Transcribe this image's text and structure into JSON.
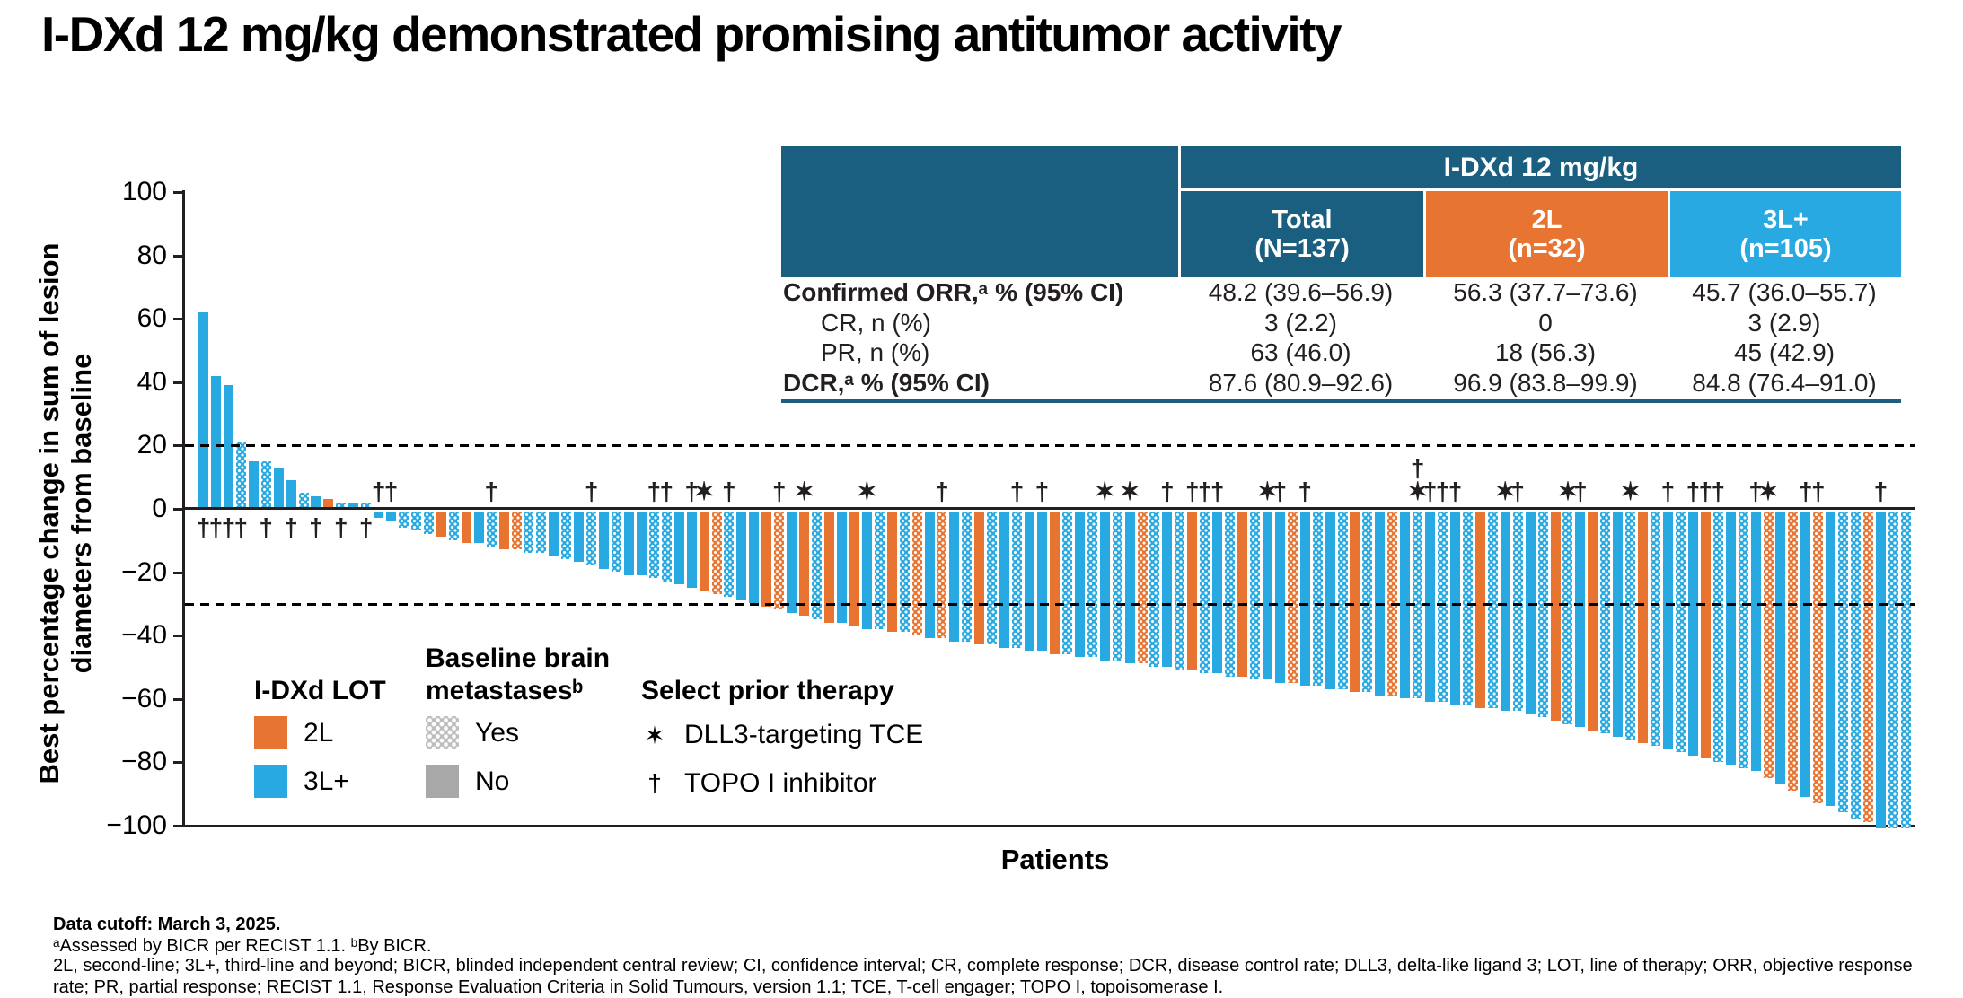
{
  "title": "I-DXd 12 mg/kg demonstrated promising antitumor activity",
  "colors": {
    "teal_header": "#1a5f80",
    "orange_2L": "#e87431",
    "blue_3L": "#29a9e1",
    "gray_no": "#a8a8a8",
    "gray_yes": "#bdbdbd"
  },
  "table": {
    "group_header": "I-DXd 12 mg/kg",
    "col_headers": [
      "Total\n(N=137)",
      "2L\n(n=32)",
      "3L+\n(n=105)"
    ],
    "rows": [
      {
        "label": "Confirmed ORR,ᵃ % (95% CI)",
        "bold": true,
        "indent": false,
        "values": [
          "48.2 (39.6–56.9)",
          "56.3 (37.7–73.6)",
          "45.7 (36.0–55.7)"
        ]
      },
      {
        "label": "CR, n (%)",
        "bold": false,
        "indent": true,
        "values": [
          "3 (2.2)",
          "0",
          "3 (2.9)"
        ]
      },
      {
        "label": "PR, n (%)",
        "bold": false,
        "indent": true,
        "values": [
          "63 (46.0)",
          "18 (56.3)",
          "45 (42.9)"
        ]
      },
      {
        "label": "DCR,ᵃ % (95% CI)",
        "bold": true,
        "indent": false,
        "values": [
          "87.6 (80.9–92.6)",
          "96.9 (83.8–99.9)",
          "84.8 (76.4–91.0)"
        ]
      }
    ]
  },
  "legend": {
    "lot": {
      "title": "I-DXd LOT",
      "items": [
        {
          "label": "2L",
          "color": "#e87431"
        },
        {
          "label": "3L+",
          "color": "#29a9e1"
        }
      ]
    },
    "brain": {
      "title": "Baseline brain\nmetastasesᵇ",
      "items": [
        {
          "label": "Yes",
          "pattern": "hatched"
        },
        {
          "label": "No",
          "pattern": "solid"
        }
      ]
    },
    "therapy": {
      "title": "Select prior therapy",
      "items": [
        {
          "symbol": "✶",
          "label": "DLL3-targeting TCE"
        },
        {
          "symbol": "†",
          "label": "TOPO I inhibitor"
        }
      ]
    }
  },
  "footnotes": [
    "Data cutoff: March 3, 2025.",
    "ᵃAssessed by BICR per RECIST 1.1. ᵇBy BICR.",
    "2L, second-line; 3L+, third-line and beyond; BICR, blinded independent central review; CI, confidence interval; CR, complete response; DCR, disease control rate; DLL3, delta-like ligand 3; LOT, line of therapy; ORR, objective response rate; PR, partial response; RECIST 1.1, Response Evaluation Criteria in Solid Tumours, version 1.1; TCE, T-cell engager; TOPO I, topoisomerase I."
  ],
  "chart_data": {
    "type": "bar",
    "subtype": "waterfall",
    "title": "",
    "xlabel": "Patients",
    "ylabel": "Best percentage change in sum of lesion\ndiameters from baseline",
    "ylim": [
      -100,
      100
    ],
    "yticks": [
      {
        "v": 100,
        "label": "100"
      },
      {
        "v": 80,
        "label": "80"
      },
      {
        "v": 60,
        "label": "60"
      },
      {
        "v": 40,
        "label": "40"
      },
      {
        "v": 20,
        "label": "20"
      },
      {
        "v": 0,
        "label": "0"
      },
      {
        "v": -20,
        "label": "−20"
      },
      {
        "v": -40,
        "label": "−40"
      },
      {
        "v": -60,
        "label": "−60"
      },
      {
        "v": -80,
        "label": "−80"
      },
      {
        "v": -100,
        "label": "−100"
      }
    ],
    "reference_lines": [
      20,
      -30
    ],
    "grid": false,
    "legend_position": "bottom-left",
    "series_colors": {
      "2L": "#e87431",
      "3L": "#29a9e1"
    },
    "symbol_meaning": {
      "✶": "DLL3-targeting TCE",
      "†": "TOPO I inhibitor"
    },
    "hatch_meaning": "baseline brain metastases = yes",
    "bars": [
      [
        62,
        "3L",
        0,
        "†"
      ],
      [
        42,
        "3L",
        0,
        "†"
      ],
      [
        39,
        "3L",
        0,
        "†"
      ],
      [
        21,
        "3L",
        1,
        "†"
      ],
      [
        15,
        "3L",
        0,
        ""
      ],
      [
        15,
        "3L",
        1,
        "†"
      ],
      [
        13,
        "3L",
        0,
        ""
      ],
      [
        9,
        "3L",
        0,
        "†"
      ],
      [
        5,
        "3L",
        1,
        ""
      ],
      [
        4,
        "3L",
        0,
        "†"
      ],
      [
        3,
        "2L",
        0,
        ""
      ],
      [
        2,
        "3L",
        1,
        "†"
      ],
      [
        2,
        "3L",
        0,
        ""
      ],
      [
        2,
        "3L",
        1,
        "†"
      ],
      [
        -2,
        "3L",
        0,
        "†"
      ],
      [
        -3,
        "3L",
        0,
        "†"
      ],
      [
        -5,
        "3L",
        1,
        ""
      ],
      [
        -6,
        "3L",
        1,
        ""
      ],
      [
        -7,
        "3L",
        1,
        ""
      ],
      [
        -8,
        "2L",
        0,
        ""
      ],
      [
        -9,
        "3L",
        1,
        ""
      ],
      [
        -10,
        "2L",
        0,
        ""
      ],
      [
        -10,
        "3L",
        0,
        ""
      ],
      [
        -11,
        "3L",
        1,
        "†"
      ],
      [
        -12,
        "2L",
        0,
        ""
      ],
      [
        -12,
        "2L",
        1,
        ""
      ],
      [
        -13,
        "3L",
        1,
        ""
      ],
      [
        -13,
        "3L",
        1,
        ""
      ],
      [
        -14,
        "3L",
        0,
        ""
      ],
      [
        -15,
        "3L",
        1,
        ""
      ],
      [
        -16,
        "3L",
        0,
        ""
      ],
      [
        -17,
        "3L",
        1,
        "†"
      ],
      [
        -18,
        "3L",
        0,
        ""
      ],
      [
        -19,
        "3L",
        1,
        ""
      ],
      [
        -20,
        "3L",
        0,
        ""
      ],
      [
        -20,
        "3L",
        0,
        ""
      ],
      [
        -21,
        "3L",
        1,
        "†"
      ],
      [
        -22,
        "3L",
        1,
        "†"
      ],
      [
        -23,
        "3L",
        0,
        ""
      ],
      [
        -24,
        "3L",
        0,
        "†"
      ],
      [
        -25,
        "2L",
        0,
        "✶"
      ],
      [
        -26,
        "2L",
        1,
        ""
      ],
      [
        -27,
        "3L",
        1,
        "†"
      ],
      [
        -28,
        "3L",
        0,
        ""
      ],
      [
        -29,
        "3L",
        0,
        ""
      ],
      [
        -30,
        "2L",
        0,
        ""
      ],
      [
        -31,
        "2L",
        1,
        "†"
      ],
      [
        -32,
        "3L",
        0,
        ""
      ],
      [
        -33,
        "2L",
        0,
        "✶"
      ],
      [
        -34,
        "3L",
        1,
        ""
      ],
      [
        -35,
        "2L",
        0,
        ""
      ],
      [
        -35,
        "3L",
        0,
        ""
      ],
      [
        -36,
        "2L",
        0,
        ""
      ],
      [
        -37,
        "3L",
        0,
        "✶"
      ],
      [
        -37,
        "3L",
        1,
        ""
      ],
      [
        -38,
        "2L",
        0,
        ""
      ],
      [
        -38,
        "3L",
        1,
        ""
      ],
      [
        -39,
        "2L",
        1,
        ""
      ],
      [
        -40,
        "3L",
        0,
        ""
      ],
      [
        -40,
        "2L",
        1,
        "†"
      ],
      [
        -41,
        "3L",
        0,
        ""
      ],
      [
        -41,
        "3L",
        1,
        ""
      ],
      [
        -42,
        "2L",
        0,
        ""
      ],
      [
        -42,
        "3L",
        1,
        ""
      ],
      [
        -43,
        "3L",
        0,
        ""
      ],
      [
        -43,
        "3L",
        1,
        "†"
      ],
      [
        -44,
        "3L",
        0,
        ""
      ],
      [
        -44,
        "3L",
        0,
        "†"
      ],
      [
        -45,
        "2L",
        0,
        ""
      ],
      [
        -45,
        "3L",
        1,
        ""
      ],
      [
        -46,
        "3L",
        0,
        ""
      ],
      [
        -46,
        "3L",
        1,
        ""
      ],
      [
        -47,
        "3L",
        0,
        "✶"
      ],
      [
        -47,
        "3L",
        1,
        ""
      ],
      [
        -48,
        "3L",
        0,
        "✶"
      ],
      [
        -48,
        "2L",
        1,
        ""
      ],
      [
        -49,
        "3L",
        1,
        ""
      ],
      [
        -49,
        "3L",
        0,
        "†"
      ],
      [
        -50,
        "3L",
        1,
        ""
      ],
      [
        -50,
        "2L",
        0,
        "†"
      ],
      [
        -51,
        "3L",
        1,
        "†"
      ],
      [
        -51,
        "3L",
        0,
        "†"
      ],
      [
        -52,
        "3L",
        1,
        ""
      ],
      [
        -52,
        "2L",
        0,
        ""
      ],
      [
        -53,
        "3L",
        1,
        ""
      ],
      [
        -53,
        "3L",
        0,
        "✶"
      ],
      [
        -54,
        "3L",
        0,
        "†"
      ],
      [
        -54,
        "2L",
        1,
        ""
      ],
      [
        -55,
        "3L",
        0,
        "†"
      ],
      [
        -55,
        "3L",
        1,
        ""
      ],
      [
        -56,
        "3L",
        0,
        ""
      ],
      [
        -56,
        "3L",
        1,
        ""
      ],
      [
        -57,
        "2L",
        0,
        ""
      ],
      [
        -57,
        "3L",
        1,
        ""
      ],
      [
        -58,
        "3L",
        0,
        ""
      ],
      [
        -58,
        "2L",
        1,
        ""
      ],
      [
        -59,
        "3L",
        0,
        ""
      ],
      [
        -59,
        "3L",
        1,
        "†\n✶"
      ],
      [
        -60,
        "3L",
        0,
        "†"
      ],
      [
        -60,
        "3L",
        1,
        "†"
      ],
      [
        -61,
        "3L",
        0,
        "†"
      ],
      [
        -61,
        "3L",
        1,
        ""
      ],
      [
        -62,
        "2L",
        0,
        ""
      ],
      [
        -62,
        "3L",
        1,
        ""
      ],
      [
        -63,
        "3L",
        0,
        "✶"
      ],
      [
        -63,
        "3L",
        1,
        "†"
      ],
      [
        -64,
        "3L",
        0,
        ""
      ],
      [
        -65,
        "3L",
        1,
        ""
      ],
      [
        -66,
        "2L",
        0,
        ""
      ],
      [
        -67,
        "3L",
        1,
        "✶"
      ],
      [
        -68,
        "3L",
        0,
        "†"
      ],
      [
        -69,
        "2L",
        0,
        ""
      ],
      [
        -70,
        "3L",
        1,
        ""
      ],
      [
        -71,
        "3L",
        0,
        ""
      ],
      [
        -72,
        "3L",
        1,
        "✶"
      ],
      [
        -73,
        "2L",
        0,
        ""
      ],
      [
        -74,
        "3L",
        1,
        ""
      ],
      [
        -75,
        "3L",
        0,
        "†"
      ],
      [
        -76,
        "3L",
        1,
        ""
      ],
      [
        -77,
        "3L",
        0,
        "†"
      ],
      [
        -78,
        "2L",
        0,
        "†"
      ],
      [
        -79,
        "3L",
        1,
        "†"
      ],
      [
        -80,
        "3L",
        0,
        ""
      ],
      [
        -81,
        "3L",
        1,
        ""
      ],
      [
        -82,
        "3L",
        0,
        "†"
      ],
      [
        -84,
        "2L",
        1,
        "✶"
      ],
      [
        -86,
        "3L",
        0,
        ""
      ],
      [
        -88,
        "2L",
        1,
        ""
      ],
      [
        -90,
        "3L",
        0,
        "†"
      ],
      [
        -92,
        "2L",
        1,
        "†"
      ],
      [
        -93,
        "3L",
        0,
        ""
      ],
      [
        -95,
        "3L",
        1,
        ""
      ],
      [
        -97,
        "3L",
        1,
        ""
      ],
      [
        -98,
        "2L",
        1,
        ""
      ],
      [
        -100,
        "3L",
        0,
        "†"
      ],
      [
        -100,
        "3L",
        1,
        ""
      ],
      [
        -100,
        "3L",
        1,
        ""
      ]
    ]
  }
}
